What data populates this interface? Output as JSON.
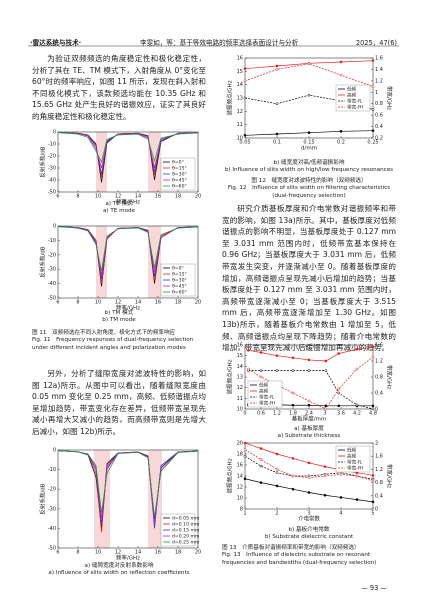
{
  "header": {
    "journal": "·雷达系统与技术·",
    "title": "李雯如，等：基于等效电路的频率选择表面设计与分析",
    "issue": "2025，47(6)"
  },
  "paragraphs": [
    "为验证双频频选的角度稳定性和极化稳定性，分析了其在 TE、TM 模式下，入射角度从 0°变化至 60°时的频率响应，如图 11 所示，发现在斜入射和不同极化模式下，该款频选均能在 10.35 GHz 和 15.65 GHz 处产生良好的谐振效应，证实了其良好的角度稳定性和极化稳定性。",
    "另外，分析了缝隙宽度对滤波特性的影响，如图 12a)所示。从图中可以看出，随着缝隙宽度由 0.05 mm 变化至 0.25 mm，高频、低频谐振点均呈增加趋势，带宽变化存在差异，低频带宽呈现先减小再增大又减小的趋势，而高频带宽则是先增大后减小，如图 12b)所示。",
    "研究介质基板厚度和介电常数对谐振频率和带宽的影响，如图 13a)所示。其中，基板厚度对低频谐振点的影响不明显，当基板厚度处于 0.127 mm 至 3.031 mm 范围内时，低频带宽基本保持在 0.96 GHz；当基板厚度大于 3.031 mm 后，低频带宽发生突变，并逐渐减小至 0。随着基板厚度的增加，高频谐振点呈现先减小后增加的趋势；当基板厚度处于 0.127 mm 至 3.031 mm 范围内时，高频带宽逐渐减小至 0；当基板厚度大于 3.515 mm 后，高频带宽逐渐增加至 1.30 GHz。如图 13b)所示，随着基板介电常数由 1 增加至 5，低频、高频谐振点均呈现下降趋势；随着介电常数的增加，带宽呈现先减小后缓慢增加再减小的趋势。"
  ],
  "captions": {
    "fig11a": [
      "a) TE 模式",
      "a) TE mode"
    ],
    "fig11b": [
      "b) TM 模式",
      "b) TM mode"
    ],
    "fig11": [
      "图 11　双频频选在不同入射角度、极化方式下的频率响应",
      "Fig. 11　Frequency responses of dual-frequency selection under different incident angles and polarization modes"
    ],
    "fig12a": [
      "a) 缝隙宽度对反射系数影响",
      "a) Influence of slits width on reflection coefficients"
    ],
    "fig12b": [
      "b) 缝宽度对高/低频谐振影响",
      "b) Influence of slits width on high/low frequency resonances"
    ],
    "fig12": [
      "图 12　缝宽度对滤波特性的影响（双频频选）",
      "Fig. 12　Influence of slits width on filtering characteristics (dual-frequency selection)"
    ],
    "fig13a": [
      "a) 基板厚度",
      "a) Substrate thickness"
    ],
    "fig13b": [
      "b) 基板介电常数",
      "b) Substrate dielectric constant"
    ],
    "fig13": [
      "图 13　介质基板对谐振频率和带宽的影响（双频频选）",
      "Fig. 13　Influence of dielectric substrate on resonant frequencies and bandwidths (dual-frequency selection)"
    ]
  },
  "page_number": "— 93 —",
  "chart_data": [
    {
      "type": "line",
      "xlabel": "频率/GHz",
      "ylabel": "反射系数/dB",
      "xlim": [
        6,
        20
      ],
      "xticks": [
        6,
        8,
        10,
        12,
        14,
        16,
        18,
        20
      ],
      "ylim": [
        -50,
        0
      ],
      "yticks": [
        -50,
        -40,
        -30,
        -20,
        -10,
        0
      ],
      "bands": [
        [
          9.8,
          10.9
        ],
        [
          15,
          16.3
        ]
      ],
      "legend": "lower right",
      "x": [
        6,
        8,
        9,
        9.8,
        10.35,
        10.9,
        12,
        14,
        15,
        15.65,
        16.3,
        18,
        20
      ],
      "series": [
        {
          "name": "θ=0°",
          "color": "#000000",
          "values": [
            -0.3,
            -1,
            -2.5,
            -10,
            -42,
            -9,
            -1.5,
            -1,
            -3,
            -40,
            -8,
            -1,
            -0.5
          ]
        },
        {
          "name": "θ=15°",
          "color": "#e02020",
          "values": [
            -0.3,
            -1,
            -2.5,
            -11,
            -38,
            -8,
            -1.5,
            -1,
            -3.5,
            -36,
            -7,
            -1,
            -0.5
          ]
        },
        {
          "name": "θ=30°",
          "color": "#2040d0",
          "values": [
            -0.3,
            -1.2,
            -3,
            -12,
            -35,
            -8,
            -1.8,
            -1.2,
            -4,
            -33,
            -7,
            -1.2,
            -0.6
          ]
        },
        {
          "name": "θ=45°",
          "color": "#d020c0",
          "values": [
            -0.4,
            -1.4,
            -3.5,
            -14,
            -30,
            -7,
            -2,
            -1.4,
            -5,
            -30,
            -6,
            -1.4,
            -0.7
          ]
        },
        {
          "name": "θ=60°",
          "color": "#10a030",
          "values": [
            -0.5,
            -1.8,
            -4.5,
            -16,
            -25,
            -6,
            -2.5,
            -1.8,
            -6,
            -24,
            -5,
            -1.8,
            -0.8
          ]
        }
      ]
    },
    {
      "type": "line",
      "xlabel": "频率/GHz",
      "ylabel": "反射系数/dB",
      "xlim": [
        6,
        20
      ],
      "xticks": [
        6,
        8,
        10,
        12,
        14,
        16,
        18,
        20
      ],
      "ylim": [
        -50,
        0
      ],
      "yticks": [
        -50,
        -40,
        -30,
        -20,
        -10,
        0
      ],
      "bands": [
        [
          9.8,
          10.9
        ],
        [
          15,
          16.3
        ]
      ],
      "legend": "lower right",
      "x": [
        6,
        8,
        9,
        9.8,
        10.35,
        10.9,
        12,
        14,
        15,
        15.65,
        16.3,
        18,
        20
      ],
      "series": [
        {
          "name": "θ=0°",
          "color": "#000000",
          "values": [
            -0.3,
            -1,
            -2.5,
            -10,
            -42,
            -9,
            -1.5,
            -1,
            -3,
            -40,
            -8,
            -1,
            -0.5
          ]
        },
        {
          "name": "θ=15°",
          "color": "#e02020",
          "values": [
            -0.3,
            -1.1,
            -2.6,
            -10,
            -40,
            -9,
            -1.6,
            -1,
            -3.2,
            -38,
            -8,
            -1.1,
            -0.5
          ]
        },
        {
          "name": "θ=30°",
          "color": "#2040d0",
          "values": [
            -0.3,
            -1.2,
            -2.8,
            -11,
            -37,
            -8,
            -1.7,
            -1.1,
            -3.5,
            -35,
            -7,
            -1.2,
            -0.6
          ]
        },
        {
          "name": "θ=45°",
          "color": "#d020c0",
          "values": [
            -0.4,
            -1.3,
            -3,
            -12,
            -34,
            -8,
            -1.8,
            -1.2,
            -4,
            -32,
            -7,
            -1.3,
            -0.6
          ]
        },
        {
          "name": "θ=60°",
          "color": "#10a030",
          "values": [
            -0.5,
            -1.5,
            -3.5,
            -13,
            -31,
            -7,
            -2,
            -1.4,
            -4.5,
            -29,
            -6,
            -1.5,
            -0.7
          ]
        }
      ]
    },
    {
      "type": "line",
      "xlabel": "频率/GHz",
      "ylabel": "反射系数/dB",
      "xlim": [
        6,
        20
      ],
      "xticks": [
        6,
        8,
        10,
        12,
        14,
        16,
        18,
        20
      ],
      "ylim": [
        -50,
        0
      ],
      "yticks": [
        -50,
        -40,
        -30,
        -20,
        -10,
        0
      ],
      "bands": [
        [
          9.6,
          11.2
        ],
        [
          15,
          16.4
        ]
      ],
      "legend": "lower right",
      "x": [
        6,
        8,
        9,
        9.8,
        10.35,
        10.9,
        12,
        14,
        15,
        15.65,
        16.3,
        18,
        20
      ],
      "series": [
        {
          "name": "d=0.05 mm",
          "color": "#000000",
          "values": [
            -0.3,
            -1,
            -2.5,
            -14,
            -40,
            -7,
            -1.5,
            -1,
            -3,
            -36,
            -9,
            -1,
            -0.5
          ]
        },
        {
          "name": "d=0.10 mm",
          "color": "#e02020",
          "values": [
            -0.3,
            -1,
            -2.4,
            -12,
            -42,
            -8,
            -1.5,
            -1,
            -3.2,
            -38,
            -8,
            -1,
            -0.5
          ]
        },
        {
          "name": "d=0.15 mm",
          "color": "#2040d0",
          "values": [
            -0.3,
            -1,
            -2.3,
            -10,
            -38,
            -9,
            -1.6,
            -1.1,
            -3.5,
            -40,
            -8,
            -1.1,
            -0.5
          ]
        },
        {
          "name": "d=0.20 mm",
          "color": "#d020c0",
          "values": [
            -0.3,
            -0.9,
            -2.2,
            -9,
            -35,
            -10,
            -1.7,
            -1.1,
            -3.8,
            -37,
            -10,
            -1.2,
            -0.6
          ]
        },
        {
          "name": "d=0.25 mm",
          "color": "#10a030",
          "values": [
            -0.3,
            -0.9,
            -2,
            -8,
            -32,
            -12,
            -1.8,
            -1.2,
            -4,
            -34,
            -11,
            -1.3,
            -0.6
          ]
        }
      ]
    },
    {
      "type": "line",
      "markers": true,
      "xlabel": "d/mm",
      "ylabel": "谐振频点/GHz",
      "y2label": "带宽/GHz",
      "xlim": [
        0.05,
        0.25
      ],
      "xticks": [
        0.05,
        0.1,
        0.15,
        0.2,
        0.25
      ],
      "ylim": [
        10,
        16
      ],
      "yticks": [
        10,
        11,
        12,
        13,
        14,
        15,
        16
      ],
      "y2lim": [
        0.2,
        1.6
      ],
      "y2ticks": [
        0.2,
        0.4,
        0.6,
        0.8,
        1.0,
        1.2,
        1.4,
        1.6
      ],
      "legend": "center right",
      "x": [
        0.05,
        0.1,
        0.15,
        0.2,
        0.25
      ],
      "series": [
        {
          "name": "低频",
          "color": "#000000",
          "values": [
            10.2,
            10.3,
            10.4,
            10.5,
            10.55
          ]
        },
        {
          "name": "高频",
          "color": "#e02020",
          "values": [
            15.2,
            15.4,
            15.6,
            15.7,
            15.8
          ]
        },
        {
          "name": "带宽-fL",
          "color": "#000000",
          "axis": "y2",
          "values": [
            0.9,
            0.8,
            0.95,
            0.85,
            0.7
          ]
        },
        {
          "name": "带宽-fH",
          "color": "#e02020",
          "axis": "y2",
          "values": [
            1.2,
            1.4,
            1.5,
            1.3,
            1.1
          ]
        }
      ]
    },
    {
      "type": "line",
      "markers": true,
      "xlabel": "基板厚度/mm",
      "ylabel": "谐振频点/GHz",
      "y2label": "带宽/GHz",
      "xlim": [
        0,
        4.8
      ],
      "xticks": [
        0,
        0.6,
        1.2,
        1.8,
        2.4,
        3.0,
        3.6,
        4.2,
        4.8
      ],
      "ylim": [
        10,
        16
      ],
      "yticks": [
        10,
        11,
        12,
        13,
        14,
        15,
        16
      ],
      "y2lim": [
        0,
        1.6
      ],
      "y2ticks": [
        0,
        0.4,
        0.8,
        1.2,
        1.6
      ],
      "legend": "lower left",
      "x": [
        0.127,
        0.6,
        1.2,
        1.8,
        2.4,
        3.031,
        3.515,
        4.2,
        4.8
      ],
      "series": [
        {
          "name": "低频",
          "color": "#000000",
          "values": [
            10.4,
            10.4,
            10.4,
            10.35,
            10.35,
            10.3,
            10.3,
            10.3,
            10.3
          ]
        },
        {
          "name": "高频",
          "color": "#e02020",
          "values": [
            15.5,
            15.3,
            15,
            14.8,
            14.6,
            14.5,
            15.2,
            15.6,
            15.8
          ]
        },
        {
          "name": "带宽-fL",
          "color": "#000000",
          "axis": "y2",
          "values": [
            0.96,
            0.96,
            0.96,
            0.96,
            0.96,
            0.96,
            0.4,
            0.1,
            0
          ]
        },
        {
          "name": "带宽-fH",
          "color": "#e02020",
          "axis": "y2",
          "values": [
            1,
            0.8,
            0.6,
            0.4,
            0.2,
            0,
            0.5,
            1,
            1.3
          ]
        }
      ]
    },
    {
      "type": "line",
      "markers": true,
      "xlabel": "介电常数",
      "ylabel": "谐振频点/GHz",
      "y2label": "带宽/GHz",
      "xlim": [
        1,
        5
      ],
      "xticks": [
        1,
        2,
        3,
        4,
        5
      ],
      "ylim": [
        8,
        20
      ],
      "yticks": [
        8,
        10,
        12,
        14,
        16,
        18,
        20
      ],
      "y2lim": [
        0,
        2
      ],
      "y2ticks": [
        0,
        0.4,
        0.8,
        1.2,
        1.6,
        2
      ],
      "legend": "upper right",
      "x": [
        1,
        1.5,
        2,
        2.5,
        3,
        3.5,
        4,
        4.5,
        5
      ],
      "series": [
        {
          "name": "低频",
          "color": "#000000",
          "values": [
            13.5,
            12.8,
            12.2,
            11.6,
            11,
            10.5,
            10.1,
            9.7,
            9.3
          ]
        },
        {
          "name": "高频",
          "color": "#e02020",
          "values": [
            20,
            19,
            18,
            17.2,
            16.4,
            15.7,
            15.1,
            14.6,
            14.1
          ]
        },
        {
          "name": "带宽-fL",
          "color": "#000000",
          "axis": "y2",
          "values": [
            1.6,
            1.3,
            1.1,
            1,
            1,
            1.05,
            1.1,
            1,
            0.9
          ]
        },
        {
          "name": "带宽-fH",
          "color": "#e02020",
          "axis": "y2",
          "values": [
            1.8,
            1.5,
            1.2,
            1,
            0.95,
            1,
            1.05,
            1,
            0.85
          ]
        }
      ]
    }
  ]
}
